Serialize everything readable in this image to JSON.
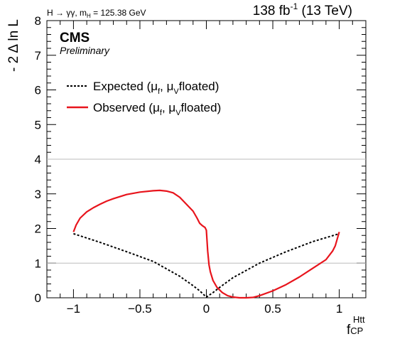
{
  "header": {
    "process_main": "H → γγ, m",
    "process_sub": "H",
    "process_value": " = 125.38 GeV",
    "lumi_base": "138 fb",
    "lumi_sup": "-1",
    "lumi_energy": " (13 TeV)",
    "experiment": "CMS",
    "status": "Preliminary"
  },
  "colors": {
    "observed": "#e8141c",
    "expected": "#000000",
    "reference_lines": "#bbbbbb"
  },
  "chart_data": {
    "type": "line",
    "ylabel": "- 2 Δ ln L",
    "xlabel_main": "f",
    "xlabel_sup": "Htt",
    "xlabel_sub": "CP",
    "xlim": [
      -1.2,
      1.2
    ],
    "ylim": [
      0,
      8
    ],
    "x_ticks": [
      -1,
      -0.5,
      0,
      0.5,
      1
    ],
    "x_tick_labels": [
      "−1",
      "−0.5",
      "0",
      "0.5",
      "1"
    ],
    "y_ticks": [
      0,
      1,
      2,
      3,
      4,
      5,
      6,
      7,
      8
    ],
    "y_tick_labels": [
      "0",
      "1",
      "2",
      "3",
      "4",
      "5",
      "6",
      "7",
      "8"
    ],
    "reference_lines_y": [
      1,
      4
    ],
    "grid": false,
    "legend_placement": "upper-left",
    "series": [
      {
        "name": "Expected (μ",
        "legend_sub1": "f",
        "legend_mid": ", μ",
        "legend_sub2": "V",
        "legend_end": "floated)",
        "style": "dashed",
        "x": [
          -1.0,
          -0.8,
          -0.6,
          -0.4,
          -0.2,
          -0.1,
          -0.05,
          0.0,
          0.05,
          0.1,
          0.2,
          0.4,
          0.6,
          0.8,
          1.0
        ],
        "y": [
          1.85,
          1.6,
          1.33,
          1.05,
          0.62,
          0.35,
          0.2,
          0.02,
          0.15,
          0.3,
          0.58,
          1.0,
          1.33,
          1.62,
          1.85
        ]
      },
      {
        "name": "Observed (μ",
        "legend_sub1": "f",
        "legend_mid": ", μ",
        "legend_sub2": "V",
        "legend_end": "floated)",
        "style": "solid",
        "x": [
          -1.0,
          -0.98,
          -0.95,
          -0.9,
          -0.85,
          -0.8,
          -0.75,
          -0.7,
          -0.6,
          -0.5,
          -0.4,
          -0.35,
          -0.3,
          -0.25,
          -0.2,
          -0.15,
          -0.1,
          -0.07,
          -0.05,
          -0.03,
          -0.01,
          0.0,
          0.01,
          0.02,
          0.03,
          0.05,
          0.08,
          0.12,
          0.16,
          0.2,
          0.25,
          0.3,
          0.35,
          0.4,
          0.5,
          0.6,
          0.7,
          0.8,
          0.9,
          0.95,
          0.97,
          1.0
        ],
        "y": [
          1.9,
          2.1,
          2.3,
          2.48,
          2.6,
          2.7,
          2.79,
          2.86,
          2.98,
          3.05,
          3.09,
          3.1,
          3.08,
          3.03,
          2.9,
          2.7,
          2.5,
          2.3,
          2.15,
          2.08,
          2.03,
          1.95,
          1.35,
          0.95,
          0.75,
          0.5,
          0.3,
          0.15,
          0.06,
          0.02,
          0.0,
          0.0,
          0.01,
          0.06,
          0.2,
          0.38,
          0.6,
          0.85,
          1.1,
          1.35,
          1.5,
          1.9
        ]
      }
    ]
  }
}
